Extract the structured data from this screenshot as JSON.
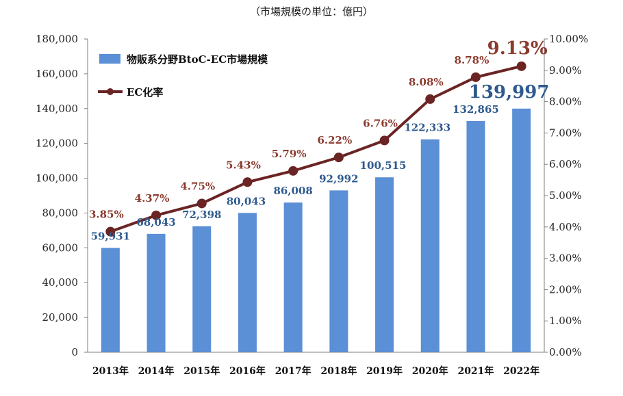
{
  "unit_note": "（市場規模の単位：億円）",
  "colors": {
    "bar": "#5b8fd6",
    "line": "#6b2424",
    "bar_label": "#2e5a8f",
    "rate_label": "#8b3a2e",
    "axis": "#7f7f7f"
  },
  "chart_data": {
    "type": "bar+line",
    "categories": [
      "2013年",
      "2014年",
      "2015年",
      "2016年",
      "2017年",
      "2018年",
      "2019年",
      "2020年",
      "2021年",
      "2022年"
    ],
    "series": [
      {
        "name": "物販系分野BtoC-EC市場規模",
        "type": "bar",
        "axis": "left",
        "values": [
          59931,
          68043,
          72398,
          80043,
          86008,
          92992,
          100515,
          122333,
          132865,
          139997
        ],
        "labels": [
          "59,931",
          "68,043",
          "72,398",
          "80,043",
          "86,008",
          "92,992",
          "100,515",
          "122,333",
          "132,865",
          "139,997"
        ]
      },
      {
        "name": "EC化率",
        "type": "line",
        "axis": "right",
        "values": [
          3.85,
          4.37,
          4.75,
          5.43,
          5.79,
          6.22,
          6.76,
          8.08,
          8.78,
          9.13
        ],
        "labels": [
          "3.85%",
          "4.37%",
          "4.75%",
          "5.43%",
          "5.79%",
          "6.22%",
          "6.76%",
          "8.08%",
          "8.78%",
          "9.13%"
        ]
      }
    ],
    "y_left": {
      "lim": [
        0,
        180000
      ],
      "ticks": [
        "0",
        "20,000",
        "40,000",
        "60,000",
        "80,000",
        "100,000",
        "120,000",
        "140,000",
        "160,000",
        "180,000"
      ]
    },
    "y_right": {
      "lim": [
        0,
        10
      ],
      "ticks": [
        "0.00%",
        "1.00%",
        "2.00%",
        "3.00%",
        "4.00%",
        "5.00%",
        "6.00%",
        "7.00%",
        "8.00%",
        "9.00%",
        "10.00%"
      ]
    },
    "grid": false,
    "legend_position": "top-left"
  }
}
